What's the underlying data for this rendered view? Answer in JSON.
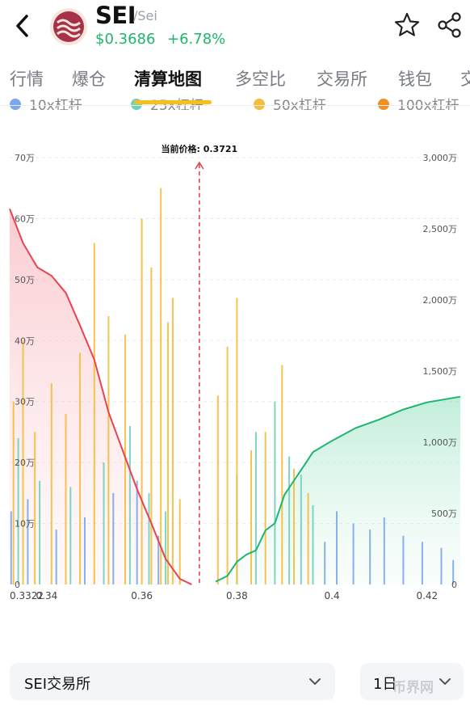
{
  "header": {
    "symbol": "SEI",
    "pair": "/Sei",
    "price": "$0.3686",
    "change": "+6.78%"
  },
  "icons": {
    "back": "chevron-left-icon",
    "coin": "sei-logo-icon",
    "favorite": "star-icon",
    "share": "share-icon",
    "dropdown": "chevron-down-icon"
  },
  "tabs": [
    "行情",
    "爆仓",
    "清算地图",
    "多空比",
    "交易所",
    "钱包",
    "交"
  ],
  "active_tab": "清算地图",
  "colors": {
    "up": "#1eb56f",
    "down_line": "#e8434f",
    "accent": "#f7bf1c",
    "lev10": "#7aa7ef",
    "lev25": "#6fd0bd",
    "lev50": "#f5bd3c",
    "lev100": "#f08f23"
  },
  "legend": [
    "10x杠杆",
    "25x杠杆",
    "50x杠杆",
    "100x杠杆"
  ],
  "chart_data": {
    "type": "bar",
    "current_price_label": "当前价格: 0.3721",
    "current_price": 0.3721,
    "x_range": [
      0.3322,
      0.427
    ],
    "x_ticks": [
      "0.3322",
      "0.34",
      "0.36",
      "0.38",
      "0.4",
      "0.42"
    ],
    "x_tick_values": [
      0.3322,
      0.34,
      0.36,
      0.38,
      0.4,
      0.42
    ],
    "y_left_ticks": [
      "0",
      "10万",
      "20万",
      "30万",
      "40万",
      "50万",
      "60万",
      "70万"
    ],
    "y_left_max": 700000,
    "y_right_ticks": [
      "0",
      "500万",
      "1,000万",
      "1,500万",
      "2,000万",
      "2,500万",
      "3,000万"
    ],
    "y_right_max": 30000000,
    "grid": true,
    "legend_position": "top",
    "long_liquidation_cumulative": {
      "x": [
        0.3322,
        0.335,
        0.338,
        0.341,
        0.344,
        0.347,
        0.35,
        0.353,
        0.356,
        0.359,
        0.362,
        0.365,
        0.368,
        0.3705
      ],
      "y": [
        26400000,
        24000000,
        22300000,
        21700000,
        20500000,
        18200000,
        15800000,
        12100000,
        9400000,
        6700000,
        4300000,
        1800000,
        400000,
        0
      ]
    },
    "short_liquidation_cumulative": {
      "x": [
        0.3755,
        0.378,
        0.38,
        0.382,
        0.384,
        0.386,
        0.388,
        0.39,
        0.392,
        0.394,
        0.396,
        0.4,
        0.405,
        0.41,
        0.415,
        0.42,
        0.427
      ],
      "y": [
        200000,
        600000,
        1600000,
        2100000,
        2400000,
        3800000,
        4300000,
        6300000,
        7300000,
        8300000,
        9300000,
        10100000,
        11000000,
        11600000,
        12300000,
        12800000,
        13200000
      ]
    },
    "bars_50x": {
      "x": [
        0.333,
        0.335,
        0.3375,
        0.341,
        0.344,
        0.347,
        0.35,
        0.353,
        0.3565,
        0.36,
        0.362,
        0.364,
        0.3655,
        0.3665,
        0.368,
        0.376,
        0.378,
        0.38,
        0.383,
        0.386,
        0.3895,
        0.392,
        0.395
      ],
      "y": [
        300000,
        400000,
        250000,
        330000,
        280000,
        380000,
        560000,
        440000,
        410000,
        600000,
        520000,
        650000,
        430000,
        470000,
        140000,
        310000,
        390000,
        470000,
        220000,
        250000,
        360000,
        190000,
        150000
      ]
    },
    "bars_25x": {
      "x": [
        0.334,
        0.3385,
        0.345,
        0.352,
        0.3575,
        0.3615,
        0.365,
        0.38,
        0.384,
        0.388,
        0.391,
        0.3935,
        0.396
      ],
      "y": [
        240000,
        170000,
        160000,
        200000,
        260000,
        150000,
        120000,
        180000,
        250000,
        300000,
        210000,
        180000,
        130000
      ]
    },
    "bars_10x": {
      "x": [
        0.3325,
        0.336,
        0.342,
        0.348,
        0.354,
        0.359,
        0.3635,
        0.3985,
        0.401,
        0.4045,
        0.408,
        0.411,
        0.415,
        0.419,
        0.423,
        0.4255
      ],
      "y": [
        120000,
        140000,
        90000,
        110000,
        150000,
        170000,
        80000,
        70000,
        120000,
        100000,
        90000,
        110000,
        80000,
        70000,
        60000,
        40000
      ]
    }
  },
  "bottom": {
    "exchange_select": "SEI交易所",
    "period_select": "1日",
    "watermark": "币界网"
  }
}
